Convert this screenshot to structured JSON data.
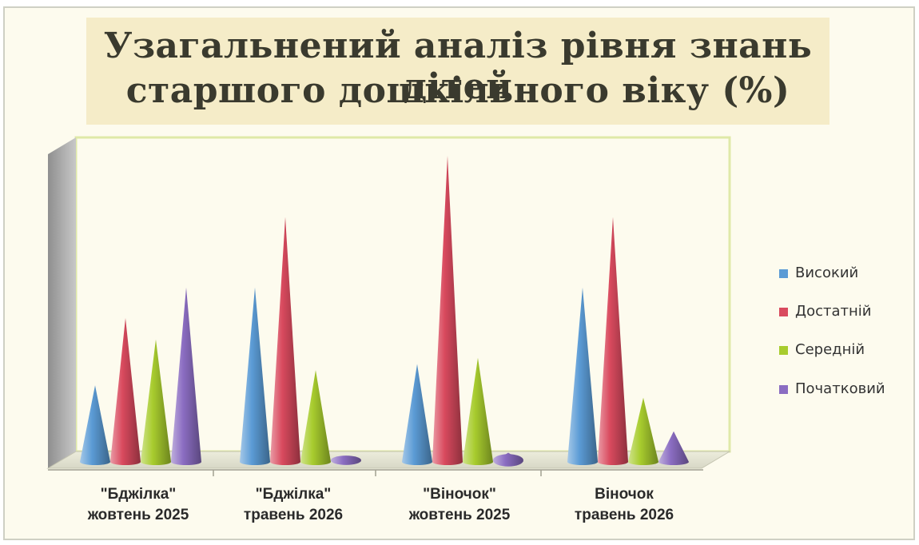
{
  "chart_data": {
    "type": "bar",
    "style": "3d-cone",
    "title_lines": [
      "Узагальнений аналіз рівня знань дітей",
      "старшого дошкільного віку (%)"
    ],
    "categories": [
      {
        "line1": "\"Бджілка\"",
        "line2": "жовтень 2025"
      },
      {
        "line1": "\"Бджілка\"",
        "line2": "травень 2026"
      },
      {
        "line1": "\"Віночок\"",
        "line2": "жовтень 2025"
      },
      {
        "line1": "Віночок",
        "line2": "травень 2026"
      }
    ],
    "series": [
      {
        "name": "Високий",
        "color": "#5b9bd5",
        "values": [
          25,
          57,
          32,
          57
        ]
      },
      {
        "name": "Достатній",
        "color": "#d94a5e",
        "values": [
          47,
          80,
          100,
          80
        ]
      },
      {
        "name": "Середній",
        "color": "#a8cc2e",
        "values": [
          40,
          30,
          34,
          21
        ]
      },
      {
        "name": "Початковий",
        "color": "#8b6dc2",
        "values": [
          57,
          2,
          3,
          10
        ]
      }
    ],
    "ylim": [
      0,
      100
    ],
    "legend_position": "right",
    "grid": false
  }
}
